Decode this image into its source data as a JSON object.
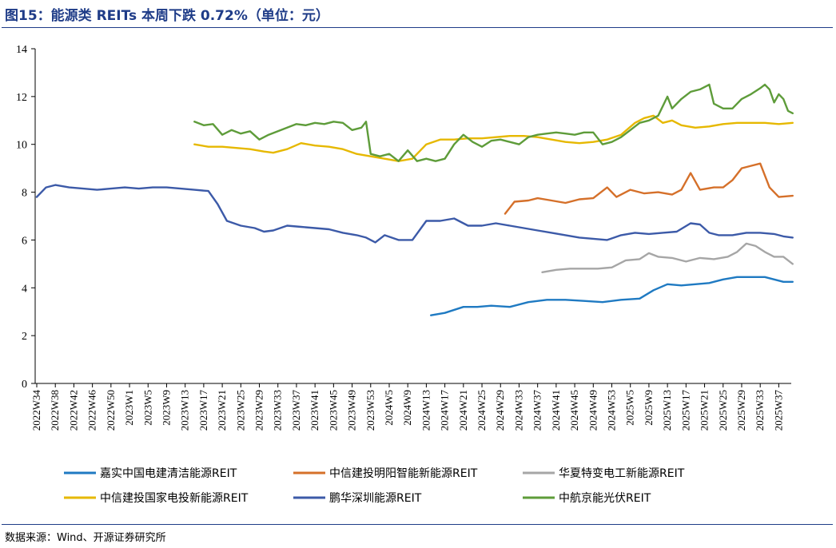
{
  "title": "图15：能源类 REITs 本周下跌 0.72%（单位：元）",
  "source": "数据来源：Wind、开源证券研究所",
  "chart_data": {
    "type": "line",
    "title": "",
    "xlabel": "",
    "ylabel": "",
    "ylim": [
      0,
      14
    ],
    "yticks": [
      0,
      2,
      4,
      6,
      8,
      10,
      12,
      14
    ],
    "grid": false,
    "legend_position": "bottom",
    "x_count": 163,
    "x": [
      "2022W34",
      "2022W38",
      "2022W42",
      "2022W46",
      "2022W50",
      "2023W1",
      "2023W5",
      "2023W9",
      "2023W13",
      "2023W17",
      "2023W21",
      "2023W25",
      "2023W29",
      "2023W33",
      "2023W37",
      "2023W41",
      "2023W45",
      "2023W49",
      "2023W53",
      "2024W5",
      "2024W9",
      "2024W13",
      "2024W17",
      "2024W21",
      "2024W25",
      "2024W29",
      "2024W33",
      "2024W37",
      "2024W41",
      "2024W45",
      "2024W49",
      "2024W53",
      "2025W5",
      "2025W9",
      "2025W13",
      "2025W17",
      "2025W21",
      "2025W25",
      "2025W29",
      "2025W33",
      "2025W37"
    ],
    "series": [
      {
        "name": "嘉实中国电建清洁能源REIT",
        "color": "#1f7ac2",
        "start": 85,
        "values": [
          [
            85,
            2.85
          ],
          [
            88,
            2.95
          ],
          [
            92,
            3.2
          ],
          [
            95,
            3.2
          ],
          [
            98,
            3.25
          ],
          [
            102,
            3.2
          ],
          [
            106,
            3.4
          ],
          [
            110,
            3.5
          ],
          [
            114,
            3.5
          ],
          [
            118,
            3.45
          ],
          [
            122,
            3.4
          ],
          [
            126,
            3.5
          ],
          [
            130,
            3.55
          ],
          [
            133,
            3.9
          ],
          [
            136,
            4.15
          ],
          [
            139,
            4.1
          ],
          [
            142,
            4.15
          ],
          [
            145,
            4.2
          ],
          [
            148,
            4.35
          ],
          [
            151,
            4.45
          ],
          [
            154,
            4.45
          ],
          [
            157,
            4.45
          ],
          [
            159,
            4.35
          ],
          [
            161,
            4.25
          ],
          [
            163,
            4.25
          ]
        ]
      },
      {
        "name": "中信建投明阳智能新能源REIT",
        "color": "#d5702a",
        "start": 101,
        "values": [
          [
            101,
            7.1
          ],
          [
            103,
            7.6
          ],
          [
            106,
            7.65
          ],
          [
            108,
            7.75
          ],
          [
            111,
            7.65
          ],
          [
            114,
            7.55
          ],
          [
            117,
            7.7
          ],
          [
            120,
            7.75
          ],
          [
            123,
            8.2
          ],
          [
            125,
            7.8
          ],
          [
            128,
            8.1
          ],
          [
            131,
            7.95
          ],
          [
            134,
            8.0
          ],
          [
            137,
            7.9
          ],
          [
            139,
            8.1
          ],
          [
            141,
            8.8
          ],
          [
            143,
            8.1
          ],
          [
            146,
            8.2
          ],
          [
            148,
            8.2
          ],
          [
            150,
            8.5
          ],
          [
            152,
            9.0
          ],
          [
            154,
            9.1
          ],
          [
            156,
            9.2
          ],
          [
            158,
            8.2
          ],
          [
            160,
            7.8
          ],
          [
            163,
            7.85
          ]
        ]
      },
      {
        "name": "华夏特变电工新能源REIT",
        "color": "#a6a6a6",
        "start": 109,
        "values": [
          [
            109,
            4.65
          ],
          [
            112,
            4.75
          ],
          [
            115,
            4.8
          ],
          [
            118,
            4.8
          ],
          [
            121,
            4.8
          ],
          [
            124,
            4.85
          ],
          [
            127,
            5.15
          ],
          [
            130,
            5.2
          ],
          [
            132,
            5.45
          ],
          [
            134,
            5.3
          ],
          [
            137,
            5.25
          ],
          [
            140,
            5.1
          ],
          [
            143,
            5.25
          ],
          [
            146,
            5.2
          ],
          [
            149,
            5.3
          ],
          [
            151,
            5.5
          ],
          [
            153,
            5.85
          ],
          [
            155,
            5.75
          ],
          [
            157,
            5.5
          ],
          [
            159,
            5.3
          ],
          [
            161,
            5.3
          ],
          [
            163,
            5.0
          ]
        ]
      },
      {
        "name": "中信建投国家电投新能源REIT",
        "color": "#e6b800",
        "start": 34,
        "values": [
          [
            34,
            10.0
          ],
          [
            37,
            9.9
          ],
          [
            40,
            9.9
          ],
          [
            43,
            9.85
          ],
          [
            46,
            9.8
          ],
          [
            49,
            9.7
          ],
          [
            51,
            9.65
          ],
          [
            54,
            9.8
          ],
          [
            57,
            10.05
          ],
          [
            60,
            9.95
          ],
          [
            63,
            9.9
          ],
          [
            66,
            9.8
          ],
          [
            69,
            9.6
          ],
          [
            72,
            9.5
          ],
          [
            75,
            9.4
          ],
          [
            78,
            9.3
          ],
          [
            81,
            9.4
          ],
          [
            84,
            10.0
          ],
          [
            87,
            10.2
          ],
          [
            90,
            10.2
          ],
          [
            93,
            10.25
          ],
          [
            96,
            10.25
          ],
          [
            99,
            10.3
          ],
          [
            102,
            10.35
          ],
          [
            105,
            10.35
          ],
          [
            108,
            10.3
          ],
          [
            111,
            10.2
          ],
          [
            114,
            10.1
          ],
          [
            117,
            10.05
          ],
          [
            120,
            10.1
          ],
          [
            123,
            10.2
          ],
          [
            126,
            10.4
          ],
          [
            129,
            10.9
          ],
          [
            131,
            11.1
          ],
          [
            133,
            11.2
          ],
          [
            135,
            10.9
          ],
          [
            137,
            11.0
          ],
          [
            139,
            10.8
          ],
          [
            142,
            10.7
          ],
          [
            145,
            10.75
          ],
          [
            148,
            10.85
          ],
          [
            151,
            10.9
          ],
          [
            154,
            10.9
          ],
          [
            157,
            10.9
          ],
          [
            160,
            10.85
          ],
          [
            163,
            10.9
          ]
        ]
      },
      {
        "name": "鹏华深圳能源REIT",
        "color": "#3c5aa8",
        "start": 0,
        "values": [
          [
            0,
            7.8
          ],
          [
            2,
            8.2
          ],
          [
            4,
            8.3
          ],
          [
            7,
            8.2
          ],
          [
            10,
            8.15
          ],
          [
            13,
            8.1
          ],
          [
            16,
            8.15
          ],
          [
            19,
            8.2
          ],
          [
            22,
            8.15
          ],
          [
            25,
            8.2
          ],
          [
            28,
            8.2
          ],
          [
            31,
            8.15
          ],
          [
            34,
            8.1
          ],
          [
            37,
            8.05
          ],
          [
            39,
            7.5
          ],
          [
            41,
            6.8
          ],
          [
            44,
            6.6
          ],
          [
            47,
            6.5
          ],
          [
            49,
            6.35
          ],
          [
            51,
            6.4
          ],
          [
            54,
            6.6
          ],
          [
            57,
            6.55
          ],
          [
            60,
            6.5
          ],
          [
            63,
            6.45
          ],
          [
            66,
            6.3
          ],
          [
            69,
            6.2
          ],
          [
            71,
            6.1
          ],
          [
            73,
            5.9
          ],
          [
            75,
            6.2
          ],
          [
            78,
            6.0
          ],
          [
            81,
            6.0
          ],
          [
            84,
            6.8
          ],
          [
            87,
            6.8
          ],
          [
            90,
            6.9
          ],
          [
            93,
            6.6
          ],
          [
            96,
            6.6
          ],
          [
            99,
            6.7
          ],
          [
            102,
            6.6
          ],
          [
            105,
            6.5
          ],
          [
            108,
            6.4
          ],
          [
            111,
            6.3
          ],
          [
            114,
            6.2
          ],
          [
            117,
            6.1
          ],
          [
            120,
            6.05
          ],
          [
            123,
            6.0
          ],
          [
            126,
            6.2
          ],
          [
            129,
            6.3
          ],
          [
            132,
            6.25
          ],
          [
            135,
            6.3
          ],
          [
            138,
            6.35
          ],
          [
            141,
            6.7
          ],
          [
            143,
            6.65
          ],
          [
            145,
            6.3
          ],
          [
            147,
            6.2
          ],
          [
            150,
            6.2
          ],
          [
            153,
            6.3
          ],
          [
            156,
            6.3
          ],
          [
            159,
            6.25
          ],
          [
            161,
            6.15
          ],
          [
            163,
            6.1
          ]
        ]
      },
      {
        "name": "中航京能光伏REIT",
        "color": "#5e9c3a",
        "start": 34,
        "values": [
          [
            34,
            10.95
          ],
          [
            36,
            10.8
          ],
          [
            38,
            10.85
          ],
          [
            40,
            10.4
          ],
          [
            42,
            10.6
          ],
          [
            44,
            10.45
          ],
          [
            46,
            10.55
          ],
          [
            48,
            10.2
          ],
          [
            50,
            10.4
          ],
          [
            52,
            10.55
          ],
          [
            54,
            10.7
          ],
          [
            56,
            10.85
          ],
          [
            58,
            10.8
          ],
          [
            60,
            10.9
          ],
          [
            62,
            10.85
          ],
          [
            64,
            10.95
          ],
          [
            66,
            10.9
          ],
          [
            68,
            10.6
          ],
          [
            70,
            10.7
          ],
          [
            71,
            10.95
          ],
          [
            72,
            9.6
          ],
          [
            74,
            9.5
          ],
          [
            76,
            9.6
          ],
          [
            78,
            9.3
          ],
          [
            80,
            9.75
          ],
          [
            82,
            9.3
          ],
          [
            84,
            9.4
          ],
          [
            86,
            9.3
          ],
          [
            88,
            9.4
          ],
          [
            90,
            10.0
          ],
          [
            92,
            10.4
          ],
          [
            94,
            10.1
          ],
          [
            96,
            9.9
          ],
          [
            98,
            10.15
          ],
          [
            100,
            10.2
          ],
          [
            102,
            10.1
          ],
          [
            104,
            10.0
          ],
          [
            106,
            10.3
          ],
          [
            108,
            10.4
          ],
          [
            110,
            10.45
          ],
          [
            112,
            10.5
          ],
          [
            114,
            10.45
          ],
          [
            116,
            10.4
          ],
          [
            118,
            10.5
          ],
          [
            120,
            10.5
          ],
          [
            122,
            10.0
          ],
          [
            124,
            10.1
          ],
          [
            126,
            10.3
          ],
          [
            128,
            10.6
          ],
          [
            130,
            10.9
          ],
          [
            132,
            11.0
          ],
          [
            134,
            11.2
          ],
          [
            136,
            12.0
          ],
          [
            137,
            11.5
          ],
          [
            139,
            11.9
          ],
          [
            141,
            12.2
          ],
          [
            143,
            12.3
          ],
          [
            145,
            12.5
          ],
          [
            146,
            11.7
          ],
          [
            148,
            11.5
          ],
          [
            150,
            11.5
          ],
          [
            152,
            11.9
          ],
          [
            154,
            12.1
          ],
          [
            156,
            12.35
          ],
          [
            157,
            12.5
          ],
          [
            158,
            12.3
          ],
          [
            159,
            11.75
          ],
          [
            160,
            12.1
          ],
          [
            161,
            11.9
          ],
          [
            162,
            11.4
          ],
          [
            163,
            11.3
          ]
        ]
      }
    ]
  }
}
